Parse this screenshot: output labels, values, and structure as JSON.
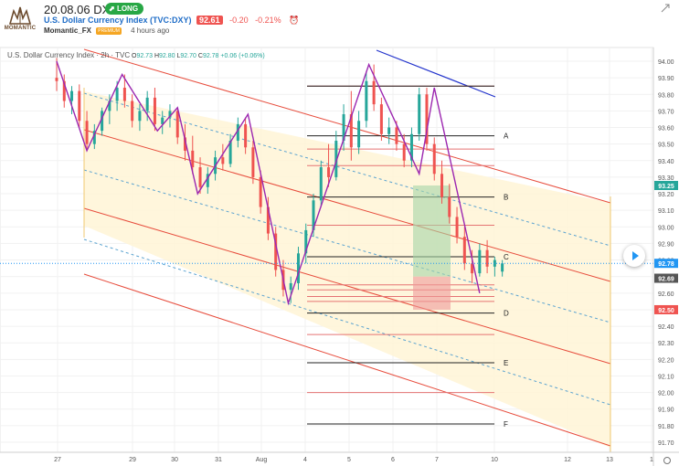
{
  "idea": {
    "title": "20.08.06 DXY",
    "badge": "LONG",
    "symbol_name": "U.S. Dollar Currency Index (TVC:DXY)",
    "price": "92.61",
    "change": "-0.20",
    "change_pct": "-0.21%",
    "author": "Momantic_FX",
    "author_badge": "PREMIUM",
    "time_ago": "4 hours ago",
    "logo_text": "MOMANTIC"
  },
  "chart_data": {
    "type": "candlestick",
    "legend": "U.S. Dollar Currency Index · 2h · TVC",
    "ohlc": {
      "open_label": "O",
      "open": "92.73",
      "high_label": "H",
      "high": "92.80",
      "low_label": "L",
      "low": "92.70",
      "close_label": "C",
      "close": "92.78",
      "change": "+0.06 (+0.06%)"
    },
    "ylim": [
      91.66,
      94.08
    ],
    "yticks": [
      "94.00",
      "93.90",
      "93.80",
      "93.70",
      "93.60",
      "93.50",
      "93.40",
      "93.30",
      "93.20",
      "93.10",
      "93.00",
      "92.90",
      "92.80",
      "92.70",
      "92.60",
      "92.50",
      "92.40",
      "92.30",
      "92.20",
      "92.10",
      "92.00",
      "91.90",
      "91.80",
      "91.70"
    ],
    "xticks": [
      "27",
      "29",
      "30",
      "31",
      "Aug",
      "4",
      "5",
      "6",
      "7",
      "10",
      "12",
      "13",
      "1"
    ],
    "price_labels": [
      {
        "value": 93.25,
        "text": "93.25",
        "color": "#26a69a"
      },
      {
        "value": 92.78,
        "text": "92.78",
        "color": "#2196f3"
      },
      {
        "value": 92.69,
        "text": "92.69",
        "color": "#555555"
      },
      {
        "value": 92.5,
        "text": "92.50",
        "color": "#ef5350"
      }
    ],
    "fib_levels": [
      {
        "value": 93.55,
        "label": "A"
      },
      {
        "value": 93.18,
        "label": "B"
      },
      {
        "value": 92.82,
        "label": "C"
      },
      {
        "value": 92.48,
        "label": "D"
      },
      {
        "value": 92.18,
        "label": "E"
      },
      {
        "value": 91.81,
        "label": "F"
      }
    ],
    "position": {
      "entry": 92.7,
      "target": 93.25,
      "stop": 92.5
    },
    "candles": [
      [
        27.0,
        93.9,
        94.02,
        93.82,
        93.88
      ],
      [
        27.15,
        93.88,
        93.92,
        93.72,
        93.76
      ],
      [
        27.3,
        93.76,
        93.85,
        93.68,
        93.82
      ],
      [
        27.45,
        93.82,
        93.86,
        93.6,
        93.64
      ],
      [
        27.6,
        93.64,
        93.7,
        93.46,
        93.5
      ],
      [
        27.75,
        93.5,
        93.62,
        93.47,
        93.58
      ],
      [
        27.9,
        93.58,
        93.72,
        93.55,
        93.7
      ],
      [
        28.05,
        93.7,
        93.8,
        93.62,
        93.76
      ],
      [
        28.2,
        93.76,
        93.88,
        93.7,
        93.84
      ],
      [
        28.35,
        93.84,
        93.92,
        93.72,
        93.76
      ],
      [
        28.5,
        93.76,
        93.8,
        93.6,
        93.64
      ],
      [
        28.65,
        93.64,
        93.74,
        93.58,
        93.7
      ],
      [
        28.8,
        93.7,
        93.82,
        93.64,
        93.78
      ],
      [
        28.95,
        93.78,
        93.84,
        93.58,
        93.62
      ],
      [
        29.1,
        93.62,
        93.7,
        93.56,
        93.66
      ],
      [
        29.25,
        93.66,
        93.74,
        93.6,
        93.7
      ],
      [
        29.4,
        93.7,
        93.72,
        93.5,
        93.54
      ],
      [
        29.55,
        93.54,
        93.62,
        93.4,
        93.46
      ],
      [
        29.7,
        93.46,
        93.55,
        93.32,
        93.36
      ],
      [
        29.85,
        93.36,
        93.42,
        93.2,
        93.24
      ],
      [
        30.0,
        93.24,
        93.36,
        93.2,
        93.32
      ],
      [
        30.15,
        93.32,
        93.46,
        93.28,
        93.42
      ],
      [
        30.3,
        93.42,
        93.5,
        93.34,
        93.38
      ],
      [
        30.45,
        93.38,
        93.56,
        93.36,
        93.52
      ],
      [
        30.6,
        93.52,
        93.66,
        93.48,
        93.62
      ],
      [
        30.75,
        93.62,
        93.66,
        93.44,
        93.48
      ],
      [
        30.9,
        93.48,
        93.52,
        93.26,
        93.3
      ],
      [
        31.05,
        93.3,
        93.34,
        93.08,
        93.12
      ],
      [
        31.2,
        93.12,
        93.18,
        92.92,
        92.96
      ],
      [
        31.35,
        92.96,
        93.0,
        92.7,
        92.74
      ],
      [
        31.5,
        92.74,
        92.8,
        92.58,
        92.62
      ],
      [
        31.65,
        92.62,
        92.7,
        92.54,
        92.66
      ],
      [
        31.8,
        92.66,
        92.88,
        92.62,
        92.84
      ],
      [
        31.95,
        92.84,
        93.02,
        92.78,
        92.98
      ],
      [
        32.1,
        92.98,
        93.2,
        92.94,
        93.16
      ],
      [
        32.25,
        93.16,
        93.4,
        93.12,
        93.36
      ],
      [
        32.4,
        93.36,
        93.5,
        93.24,
        93.3
      ],
      [
        32.55,
        93.3,
        93.58,
        93.28,
        93.52
      ],
      [
        32.7,
        93.52,
        93.74,
        93.46,
        93.68
      ],
      [
        32.85,
        93.68,
        93.82,
        93.4,
        93.48
      ],
      [
        33.0,
        93.48,
        93.7,
        93.44,
        93.64
      ],
      [
        33.15,
        93.64,
        93.94,
        93.6,
        93.88
      ],
      [
        33.3,
        93.88,
        93.98,
        93.7,
        93.74
      ],
      [
        33.45,
        93.74,
        93.78,
        93.52,
        93.56
      ],
      [
        33.6,
        93.56,
        93.66,
        93.5,
        93.6
      ],
      [
        33.75,
        93.6,
        93.64,
        93.46,
        93.5
      ],
      [
        33.9,
        93.5,
        93.56,
        93.36,
        93.4
      ],
      [
        34.05,
        93.4,
        93.6,
        93.36,
        93.56
      ],
      [
        34.2,
        93.56,
        93.84,
        93.52,
        93.8
      ],
      [
        34.35,
        93.8,
        93.84,
        93.46,
        93.5
      ],
      [
        34.5,
        93.5,
        93.54,
        93.28,
        93.32
      ],
      [
        34.65,
        93.32,
        93.4,
        93.14,
        93.18
      ],
      [
        34.8,
        93.18,
        93.26,
        93.02,
        93.06
      ],
      [
        34.95,
        93.06,
        93.12,
        92.9,
        92.94
      ],
      [
        35.1,
        92.94,
        93.0,
        92.74,
        92.78
      ],
      [
        35.25,
        92.78,
        92.86,
        92.66,
        92.72
      ],
      [
        35.4,
        92.72,
        92.9,
        92.7,
        92.86
      ],
      [
        35.55,
        92.86,
        92.92,
        92.72,
        92.76
      ],
      [
        35.7,
        92.76,
        92.82,
        92.7,
        92.8
      ],
      [
        35.85,
        92.73,
        92.8,
        92.7,
        92.78
      ]
    ]
  }
}
